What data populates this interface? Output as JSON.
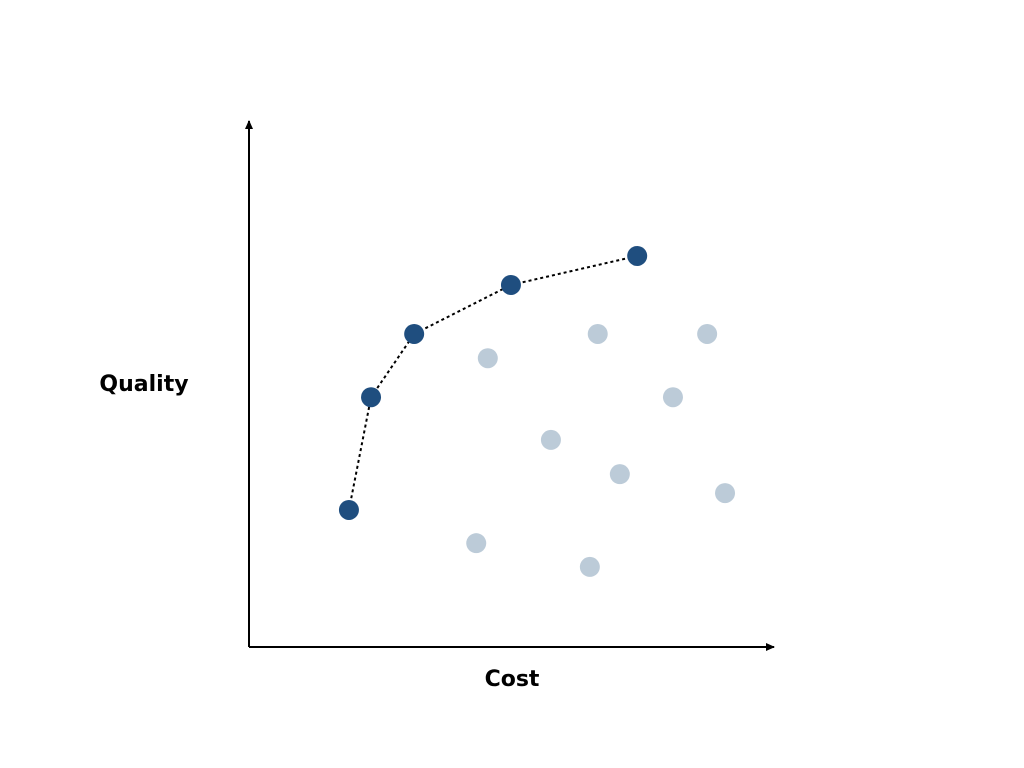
{
  "chart_data": {
    "type": "scatter",
    "x_label": "Cost",
    "y_label": "Quality",
    "xlim": [
      0,
      100
    ],
    "ylim": [
      0,
      100
    ],
    "series": [
      {
        "color": "#1f4e7f",
        "line_style": "dotted",
        "x": [
          19.0,
          23.2,
          31.4,
          49.8,
          73.8
        ],
        "values": [
          26.0,
          47.4,
          59.4,
          68.7,
          74.2
        ]
      },
      {
        "color": "#bccbd8",
        "x": [
          45.4,
          66.3,
          87.1,
          80.6,
          57.4,
          70.5,
          90.5,
          43.2,
          64.8
        ],
        "values": [
          54.8,
          59.4,
          59.4,
          47.4,
          39.3,
          32.8,
          29.2,
          19.7,
          15.2
        ]
      }
    ]
  }
}
